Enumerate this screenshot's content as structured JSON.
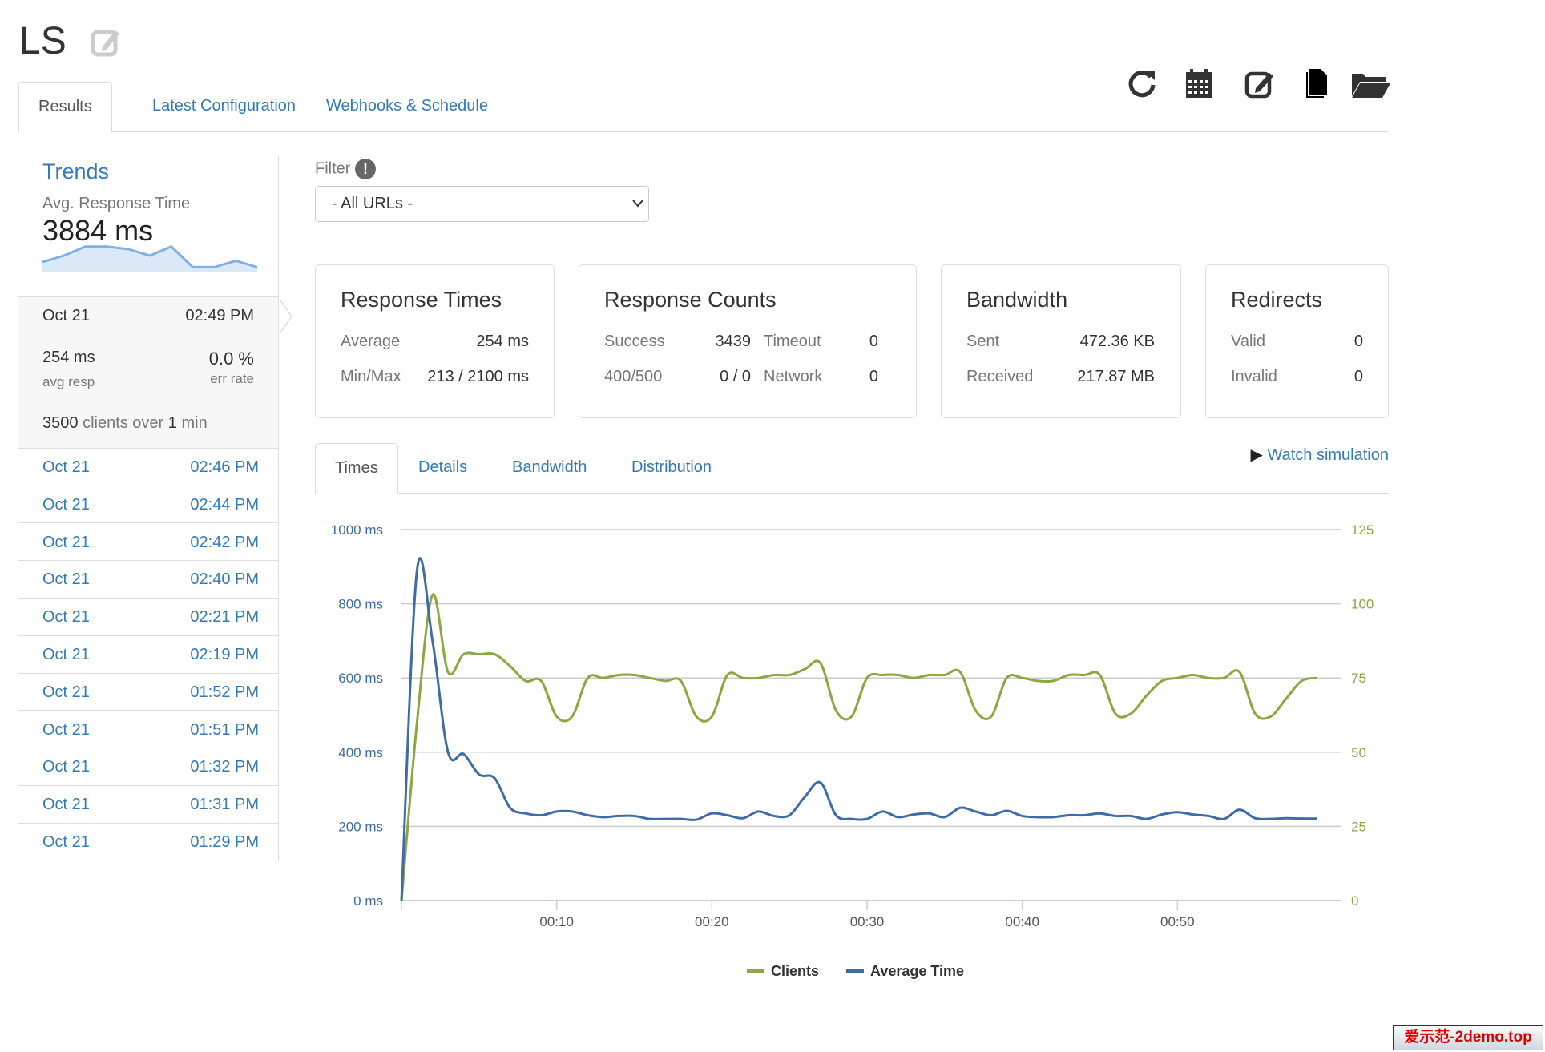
{
  "header": {
    "title": "LS"
  },
  "tabs": [
    {
      "label": "Results",
      "active": true
    },
    {
      "label": "Latest Configuration"
    },
    {
      "label": "Webhooks & Schedule"
    }
  ],
  "toolbar": {
    "icons": [
      "refresh-icon",
      "calendar-icon",
      "edit-icon",
      "copy-icon",
      "folder-open-icon"
    ]
  },
  "sidebar": {
    "title": "Trends",
    "metric_label": "Avg. Response Time",
    "metric_value": "3884 ms",
    "sparkline": [
      60,
      70,
      84,
      84,
      80,
      70,
      84,
      52,
      52,
      62,
      52
    ],
    "selected": {
      "date": "Oct 21",
      "time": "02:49 PM",
      "avg": "254 ms",
      "avg_label": "avg resp",
      "err": "0.0 %",
      "err_label": "err rate",
      "clients": "3500",
      "clients_text": "clients over",
      "duration": "1",
      "duration_unit": "min"
    },
    "runs": [
      {
        "date": "Oct 21",
        "time": "02:46 PM"
      },
      {
        "date": "Oct 21",
        "time": "02:44 PM"
      },
      {
        "date": "Oct 21",
        "time": "02:42 PM"
      },
      {
        "date": "Oct 21",
        "time": "02:40 PM"
      },
      {
        "date": "Oct 21",
        "time": "02:21 PM"
      },
      {
        "date": "Oct 21",
        "time": "02:19 PM"
      },
      {
        "date": "Oct 21",
        "time": "01:52 PM"
      },
      {
        "date": "Oct 21",
        "time": "01:51 PM"
      },
      {
        "date": "Oct 21",
        "time": "01:32 PM"
      },
      {
        "date": "Oct 21",
        "time": "01:31 PM"
      },
      {
        "date": "Oct 21",
        "time": "01:29 PM"
      }
    ]
  },
  "filter": {
    "label": "Filter",
    "selected": "- All URLs -"
  },
  "cards": {
    "response_times": {
      "title": "Response Times",
      "avg_label": "Average",
      "avg": "254 ms",
      "minmax_label": "Min/Max",
      "minmax": "213 / 2100 ms"
    },
    "response_counts": {
      "title": "Response Counts",
      "success_label": "Success",
      "success": "3439",
      "timeout_label": "Timeout",
      "timeout": "0",
      "err_label": "400/500",
      "err": "0 / 0",
      "network_label": "Network",
      "network": "0"
    },
    "bandwidth": {
      "title": "Bandwidth",
      "sent_label": "Sent",
      "sent": "472.36 KB",
      "received_label": "Received",
      "received": "217.87 MB"
    },
    "redirects": {
      "title": "Redirects",
      "valid_label": "Valid",
      "valid": "0",
      "invalid_label": "Invalid",
      "invalid": "0"
    }
  },
  "subtabs": [
    {
      "label": "Times",
      "active": true
    },
    {
      "label": "Details"
    },
    {
      "label": "Bandwidth"
    },
    {
      "label": "Distribution"
    }
  ],
  "watch_label": "Watch simulation",
  "chart_data": {
    "type": "line",
    "x_ticks": [
      "00:10",
      "00:20",
      "00:30",
      "00:40",
      "00:50"
    ],
    "x_range_seconds": [
      0,
      60
    ],
    "y_left": {
      "ticks": [
        "0 ms",
        "200 ms",
        "400 ms",
        "600 ms",
        "800 ms",
        "1000 ms"
      ],
      "range": [
        0,
        1000
      ]
    },
    "y_right": {
      "ticks": [
        "0",
        "25",
        "50",
        "75",
        "100",
        "125"
      ],
      "range": [
        0,
        125
      ]
    },
    "grid": true,
    "legend": "bottom",
    "series": [
      {
        "name": "Clients",
        "axis": "right",
        "color": "#8aa83f",
        "values": [
          0,
          60,
          103,
          77,
          83,
          83,
          83,
          79,
          74,
          74,
          62,
          62,
          75,
          75,
          76,
          76,
          75,
          74,
          74,
          62,
          62,
          76,
          75,
          75,
          76,
          76,
          78,
          80,
          64,
          62,
          75,
          76,
          76,
          75,
          76,
          76,
          77,
          64,
          62,
          75,
          75,
          74,
          74,
          76,
          76,
          76,
          63,
          63,
          69,
          74,
          75,
          76,
          75,
          75,
          77,
          63,
          62,
          68,
          74,
          75
        ]
      },
      {
        "name": "Average Time",
        "axis": "left",
        "color": "#3f6ca7",
        "values": [
          0,
          890,
          700,
          400,
          395,
          340,
          330,
          250,
          235,
          230,
          240,
          240,
          230,
          225,
          228,
          228,
          220,
          220,
          220,
          218,
          235,
          230,
          222,
          240,
          228,
          230,
          280,
          318,
          230,
          220,
          220,
          240,
          225,
          232,
          235,
          225,
          250,
          240,
          230,
          242,
          228,
          225,
          225,
          230,
          230,
          235,
          228,
          228,
          220,
          232,
          238,
          232,
          228,
          220,
          245,
          222,
          220,
          222,
          221,
          221
        ]
      }
    ]
  },
  "watermark": "爱示范-2demo.top"
}
